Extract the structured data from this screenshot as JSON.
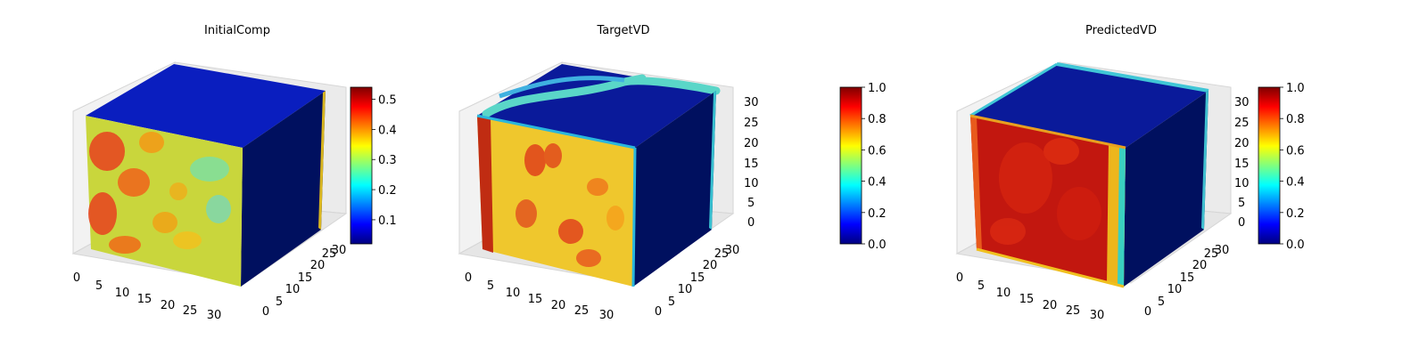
{
  "chart_data": [
    {
      "type": "3d-voxel",
      "title": "InitialComp",
      "x_ticks": [
        "0",
        "5",
        "10",
        "15",
        "20",
        "25",
        "30"
      ],
      "y_ticks": [
        "0",
        "5",
        "10",
        "15",
        "20",
        "25",
        "30"
      ],
      "z_ticks": [],
      "colorbar": {
        "colormap": "jet",
        "range": [
          0.02,
          0.54
        ],
        "ticks": [
          "0.1",
          "0.2",
          "0.3",
          "0.4",
          "0.5"
        ],
        "tick_values": [
          0.1,
          0.2,
          0.3,
          0.4,
          0.5
        ]
      },
      "faces": {
        "front": "mixed 0.30-0.50",
        "top": "low ~0.05",
        "side": "low ~0.02"
      }
    },
    {
      "type": "3d-voxel",
      "title": "TargetVD",
      "x_ticks": [
        "0",
        "5",
        "10",
        "15",
        "20",
        "25",
        "30"
      ],
      "y_ticks": [
        "0",
        "5",
        "10",
        "15",
        "20",
        "25",
        "30"
      ],
      "z_ticks": [
        "0",
        "5",
        "10",
        "15",
        "20",
        "25",
        "30"
      ],
      "colorbar": {
        "colormap": "jet",
        "range": [
          0.0,
          1.0
        ],
        "ticks": [
          "0.0",
          "0.2",
          "0.4",
          "0.6",
          "0.8",
          "1.0"
        ],
        "tick_values": [
          0.0,
          0.2,
          0.4,
          0.6,
          0.8,
          1.0
        ]
      },
      "faces": {
        "front": "mixed 0.60-0.90",
        "top": "low with curved band ~0.5",
        "side": "low ~0.0"
      }
    },
    {
      "type": "3d-voxel",
      "title": "PredictedVD",
      "x_ticks": [
        "0",
        "5",
        "10",
        "15",
        "20",
        "25",
        "30"
      ],
      "y_ticks": [
        "0",
        "5",
        "10",
        "15",
        "20",
        "25",
        "30"
      ],
      "z_ticks": [
        "0",
        "5",
        "10",
        "15",
        "20",
        "25",
        "30"
      ],
      "colorbar": {
        "colormap": "jet",
        "range": [
          0.0,
          1.0
        ],
        "ticks": [
          "0.0",
          "0.2",
          "0.4",
          "0.6",
          "0.8",
          "1.0"
        ],
        "tick_values": [
          0.0,
          0.2,
          0.4,
          0.6,
          0.8,
          1.0
        ]
      },
      "faces": {
        "front": "high ~0.90-0.95",
        "top": "low ~0.05",
        "side": "low ~0.0"
      }
    }
  ]
}
